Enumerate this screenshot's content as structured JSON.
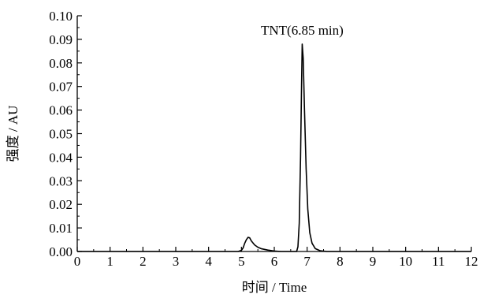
{
  "chart_data": {
    "type": "line",
    "title": "",
    "xlabel": "时间 / Time",
    "ylabel": "强度 / AU",
    "xlim": [
      0,
      12
    ],
    "ylim": [
      0,
      0.1
    ],
    "x_ticks": [
      "0",
      "1",
      "2",
      "3",
      "4",
      "5",
      "6",
      "7",
      "8",
      "9",
      "10",
      "11",
      "12"
    ],
    "y_ticks": [
      "0.00",
      "0.01",
      "0.02",
      "0.03",
      "0.04",
      "0.05",
      "0.06",
      "0.07",
      "0.08",
      "0.09",
      "0.10"
    ],
    "grid": false,
    "legend": "none",
    "annotations": [
      {
        "text": "TNT(6.85 min)",
        "x": 6.85,
        "y": 0.088
      }
    ],
    "series": [
      {
        "color": "#000000",
        "points": [
          [
            0.0,
            0.0
          ],
          [
            4.9,
            0.0
          ],
          [
            5.0,
            0.0005
          ],
          [
            5.05,
            0.0015
          ],
          [
            5.1,
            0.0035
          ],
          [
            5.15,
            0.005
          ],
          [
            5.2,
            0.006
          ],
          [
            5.25,
            0.0058
          ],
          [
            5.3,
            0.0045
          ],
          [
            5.4,
            0.0028
          ],
          [
            5.5,
            0.0018
          ],
          [
            5.6,
            0.0012
          ],
          [
            5.8,
            0.0006
          ],
          [
            6.0,
            0.0002
          ],
          [
            6.2,
            0.0
          ],
          [
            6.68,
            0.0
          ],
          [
            6.72,
            0.002
          ],
          [
            6.76,
            0.012
          ],
          [
            6.8,
            0.04
          ],
          [
            6.83,
            0.07
          ],
          [
            6.85,
            0.088
          ],
          [
            6.88,
            0.082
          ],
          [
            6.92,
            0.06
          ],
          [
            6.97,
            0.035
          ],
          [
            7.02,
            0.018
          ],
          [
            7.08,
            0.008
          ],
          [
            7.15,
            0.0035
          ],
          [
            7.25,
            0.0012
          ],
          [
            7.4,
            0.0003
          ],
          [
            7.6,
            0.0
          ],
          [
            12.0,
            0.0
          ]
        ]
      }
    ]
  }
}
